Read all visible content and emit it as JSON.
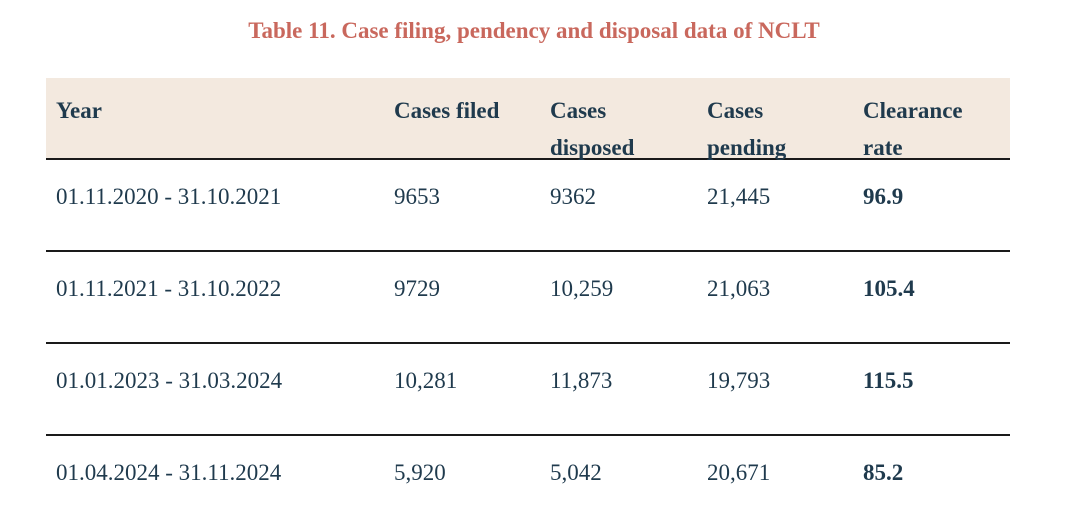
{
  "caption": "Table 11. Case filing, pendency and disposal data of NCLT",
  "headers": {
    "year": "Year",
    "filed": "Cases filed",
    "disposed_l1": "Cases",
    "disposed_l2": "disposed",
    "pending_l1": "Cases",
    "pending_l2": "pending",
    "clearance_l1": "Clearance",
    "clearance_l2": "rate"
  },
  "rows": [
    {
      "year": "01.11.2020 - 31.10.2021",
      "filed": "9653",
      "disposed": "9362",
      "pending": "21,445",
      "clearance": "96.9"
    },
    {
      "year": "01.11.2021 - 31.10.2022",
      "filed": "9729",
      "disposed": "10,259",
      "pending": "21,063",
      "clearance": "105.4"
    },
    {
      "year": "01.01.2023 - 31.03.2024",
      "filed": "10,281",
      "disposed": "11,873",
      "pending": "19,793",
      "clearance": "115.5"
    },
    {
      "year": "01.04.2024 - 31.11.2024",
      "filed": "5,920",
      "disposed": "5,042",
      "pending": "20,671",
      "clearance": "85.2"
    }
  ],
  "colors": {
    "caption": "#c9685d",
    "header_bg": "#f3e9df",
    "text": "#1f3a4d",
    "rule": "#1a1a1a"
  }
}
